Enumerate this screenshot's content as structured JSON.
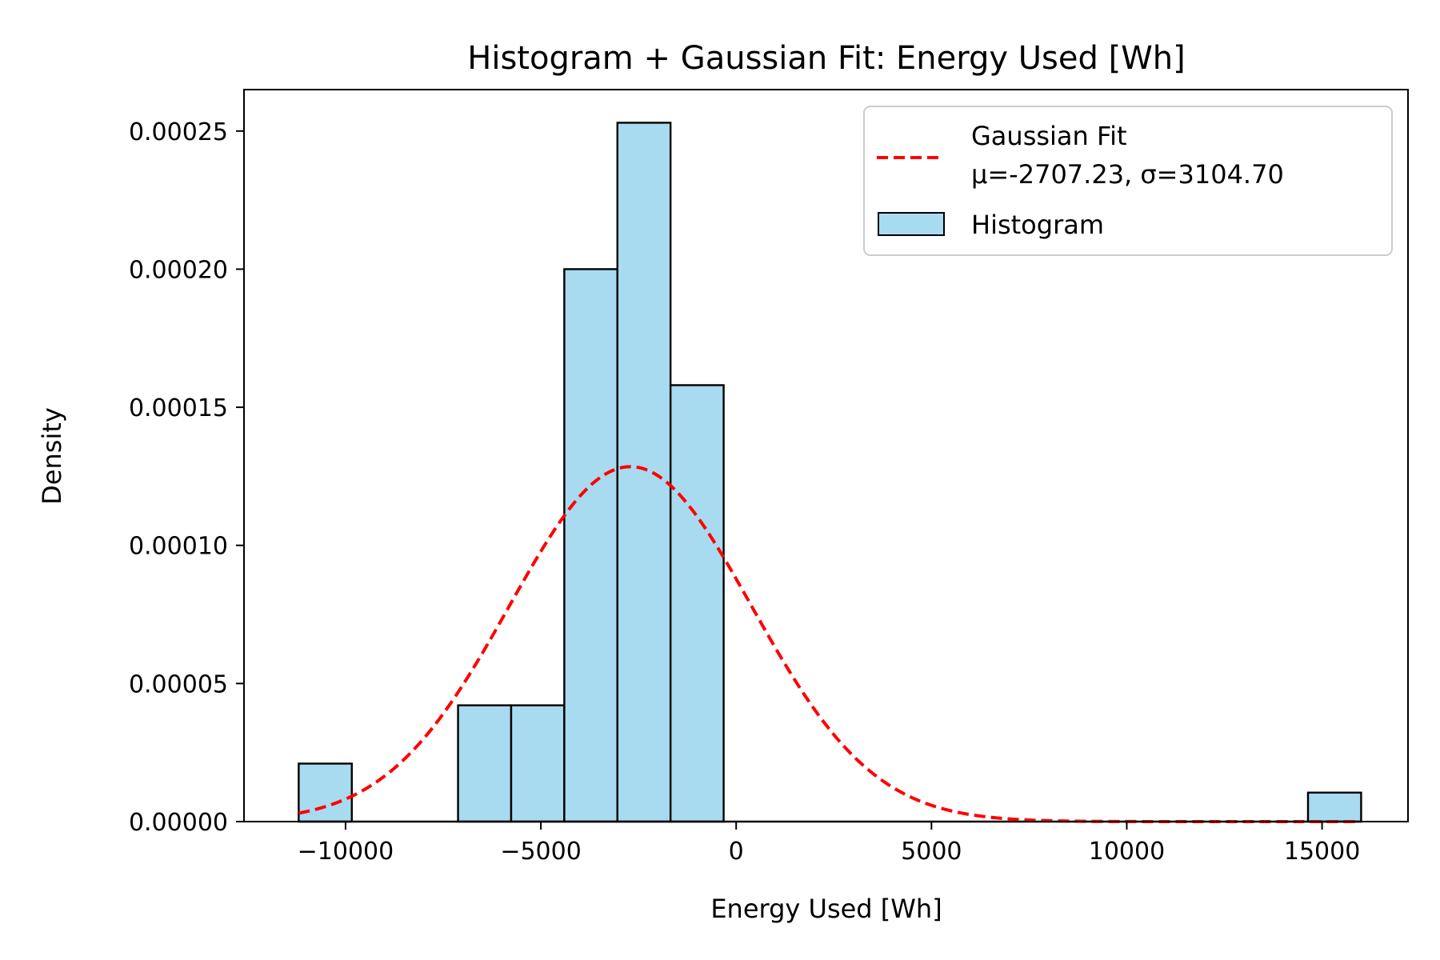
{
  "chart_data": {
    "type": "bar",
    "title": "Histogram + Gaussian Fit: Energy Used [Wh]",
    "xlabel": "Energy Used [Wh]",
    "ylabel": "Density",
    "xlim": [
      -12600,
      17200
    ],
    "ylim": [
      0,
      0.000265
    ],
    "x_ticks": [
      -10000,
      -5000,
      0,
      5000,
      10000,
      15000
    ],
    "x_tick_labels": [
      "−10000",
      "−5000",
      "0",
      "5000",
      "10000",
      "15000"
    ],
    "y_ticks": [
      0,
      5e-05,
      0.0001,
      0.00015,
      0.0002,
      0.00025
    ],
    "y_tick_labels": [
      "0.00000",
      "0.00005",
      "0.00010",
      "0.00015",
      "0.00020",
      "0.00025"
    ],
    "grid": false,
    "legend_position": "top-right",
    "histogram": {
      "name": "Histogram",
      "color": "#a8daf0",
      "edge_color": "#000000",
      "bin_start": -11200,
      "bin_width": 1360,
      "densities": [
        2.1e-05,
        0,
        0,
        4.21e-05,
        4.21e-05,
        0.0002,
        0.000253,
        0.000158,
        0,
        0,
        0,
        0,
        0,
        0,
        0,
        0,
        0,
        0,
        0,
        1.05e-05
      ]
    },
    "gaussian_fit": {
      "name": "Gaussian Fit",
      "label_line2": "μ=-2707.23, σ=3104.70",
      "mu": -2707.23,
      "sigma": 3104.7,
      "x_range": [
        -11200,
        15900
      ],
      "color": "#ff0000",
      "line_style": "dashed"
    }
  }
}
